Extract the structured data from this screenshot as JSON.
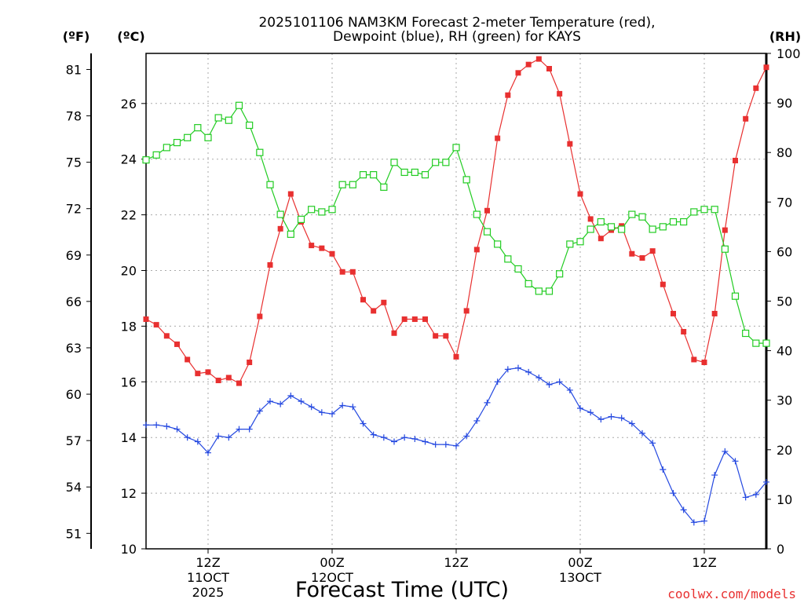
{
  "chart_data": {
    "type": "line",
    "title_line1": "2025101106 NAM3KM Forecast 2-meter Temperature (red),",
    "title_line2": "Dewpoint (blue), RH (green) for KAYS",
    "xlabel": "Forecast Time (UTC)",
    "watermark": "coolwx.com/models",
    "unit_f": "(ºF)",
    "unit_c": "(ºC)",
    "unit_rh": "(RH)",
    "x_range_hours": [
      0,
      60
    ],
    "celsius_range": [
      10,
      27.8
    ],
    "rh_range": [
      0,
      100
    ],
    "celsius_ticks": [
      "10",
      "12",
      "14",
      "16",
      "18",
      "20",
      "22",
      "24",
      "26"
    ],
    "fahrenheit_ticks": [
      "51",
      "54",
      "57",
      "60",
      "63",
      "66",
      "69",
      "72",
      "75",
      "78",
      "81"
    ],
    "rh_ticks": [
      "0",
      "10",
      "20",
      "30",
      "40",
      "50",
      "60",
      "70",
      "80",
      "90",
      "100"
    ],
    "x_ticks": [
      {
        "hour": 6,
        "label": "12Z",
        "sub": "11OCT",
        "year": "2025"
      },
      {
        "hour": 18,
        "label": "00Z",
        "sub": "12OCT",
        "year": ""
      },
      {
        "hour": 30,
        "label": "12Z",
        "sub": "",
        "year": ""
      },
      {
        "hour": 42,
        "label": "00Z",
        "sub": "13OCT",
        "year": ""
      },
      {
        "hour": 54,
        "label": "12Z",
        "sub": "",
        "year": ""
      }
    ],
    "series": [
      {
        "name": "2-meter Temperature",
        "units": "C",
        "color": "#e83030",
        "marker": "square-filled",
        "values": [
          18.25,
          18.05,
          17.65,
          17.35,
          16.8,
          16.3,
          16.35,
          16.05,
          16.15,
          15.95,
          16.7,
          18.35,
          20.2,
          21.5,
          22.75,
          21.75,
          20.9,
          20.8,
          20.6,
          19.95,
          19.95,
          18.95,
          18.55,
          18.85,
          17.75,
          18.25,
          18.25,
          18.25,
          17.65,
          17.65,
          16.9,
          18.55,
          20.75,
          22.15,
          24.75,
          26.3,
          27.1,
          27.4,
          27.6,
          27.25,
          26.35,
          24.55,
          22.75,
          21.85,
          21.15,
          21.45,
          21.6,
          20.6,
          20.45,
          20.7,
          19.5,
          18.45,
          17.8,
          16.8,
          16.7,
          18.45,
          21.45,
          23.95,
          25.45,
          26.55,
          27.3
        ]
      },
      {
        "name": "Dewpoint",
        "units": "C",
        "color": "#2448e0",
        "marker": "plus",
        "values": [
          14.45,
          14.45,
          14.4,
          14.3,
          14.0,
          13.85,
          13.45,
          14.05,
          14.0,
          14.3,
          14.3,
          14.95,
          15.3,
          15.2,
          15.5,
          15.3,
          15.1,
          14.9,
          14.85,
          15.15,
          15.1,
          14.5,
          14.1,
          14.0,
          13.85,
          14.0,
          13.95,
          13.85,
          13.75,
          13.75,
          13.7,
          14.05,
          14.6,
          15.25,
          16.0,
          16.45,
          16.5,
          16.35,
          16.15,
          15.9,
          16.0,
          15.7,
          15.05,
          14.9,
          14.65,
          14.75,
          14.7,
          14.5,
          14.15,
          13.8,
          12.85,
          12.0,
          11.4,
          10.95,
          11.0,
          12.65,
          13.5,
          13.15,
          11.85,
          11.95,
          12.4
        ]
      },
      {
        "name": "RH",
        "units": "%",
        "color": "#22cc22",
        "marker": "square-open",
        "values": [
          78.5,
          79.5,
          81,
          82,
          83,
          85,
          83,
          87,
          86.5,
          89.5,
          85.5,
          80,
          73.5,
          67.5,
          63.5,
          66.5,
          68.5,
          68,
          68.5,
          73.5,
          73.5,
          75.5,
          75.5,
          73,
          78,
          76,
          76,
          75.5,
          78,
          78,
          81,
          74.5,
          67.5,
          64,
          61.5,
          58.5,
          56.5,
          53.5,
          52,
          52,
          55.5,
          61.5,
          62,
          64.5,
          66,
          65,
          64.5,
          67.5,
          67,
          64.5,
          65,
          66,
          66,
          68,
          68.5,
          68.5,
          60.5,
          51,
          43.5,
          41.5,
          41.5
        ]
      }
    ]
  }
}
